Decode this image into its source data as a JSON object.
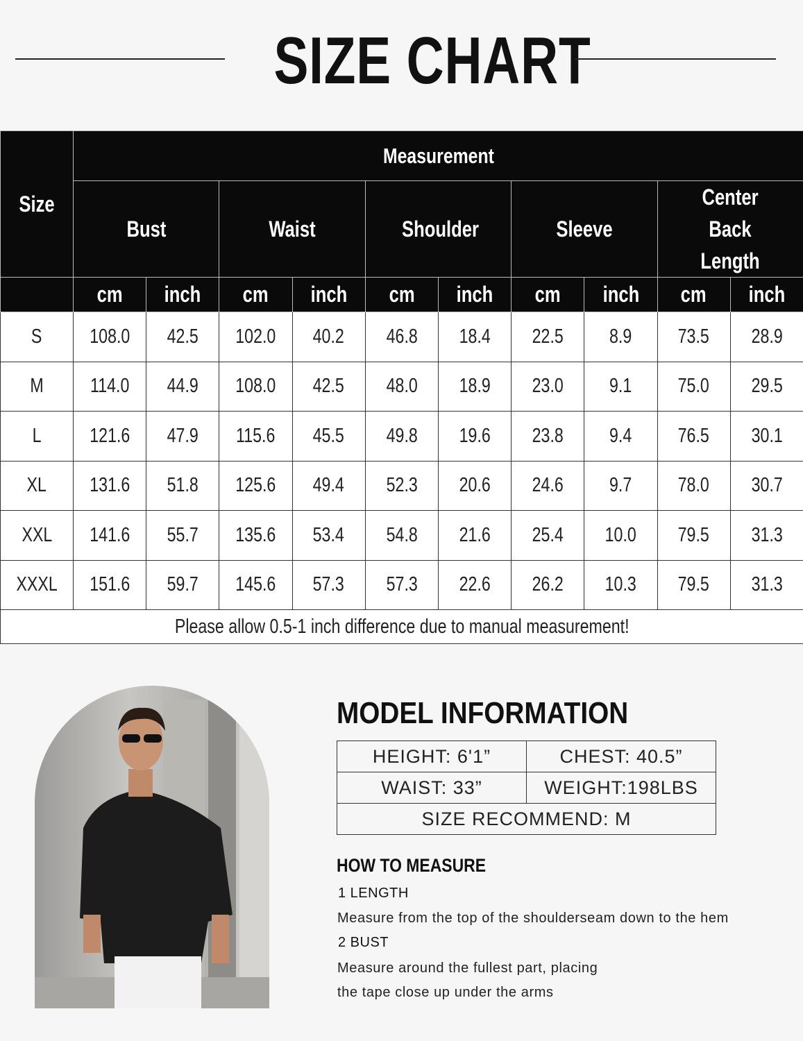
{
  "title": "SIZE CHART",
  "size_table": {
    "size_label": "Size",
    "measurement_label": "Measurement",
    "groups": [
      "Bust",
      "Waist",
      "Shoulder",
      "Sleeve",
      "Center Back Length"
    ],
    "units": [
      "cm",
      "inch"
    ],
    "rows": [
      [
        "S",
        "108.0",
        "42.5",
        "102.0",
        "40.2",
        "46.8",
        "18.4",
        "22.5",
        "8.9",
        "73.5",
        "28.9"
      ],
      [
        "M",
        "114.0",
        "44.9",
        "108.0",
        "42.5",
        "48.0",
        "18.9",
        "23.0",
        "9.1",
        "75.0",
        "29.5"
      ],
      [
        "L",
        "121.6",
        "47.9",
        "115.6",
        "45.5",
        "49.8",
        "19.6",
        "23.8",
        "9.4",
        "76.5",
        "30.1"
      ],
      [
        "XL",
        "131.6",
        "51.8",
        "125.6",
        "49.4",
        "52.3",
        "20.6",
        "24.6",
        "9.7",
        "78.0",
        "30.7"
      ],
      [
        "XXL",
        "141.6",
        "55.7",
        "135.6",
        "53.4",
        "54.8",
        "21.6",
        "25.4",
        "10.0",
        "79.5",
        "31.3"
      ],
      [
        "XXXL",
        "151.6",
        "59.7",
        "145.6",
        "57.3",
        "57.3",
        "22.6",
        "26.2",
        "10.3",
        "79.5",
        "31.3"
      ]
    ],
    "note": "Please allow 0.5-1 inch difference due to manual measurement!"
  },
  "model": {
    "title": "MODEL INFORMATION",
    "height": "HEIGHT:  6'1”",
    "chest": "CHEST:  40.5”",
    "waist": "WAIST:  33”",
    "weight": "WEIGHT:198LBS",
    "size": "SIZE RECOMMEND:  M"
  },
  "how_to": {
    "title": "HOW TO MEASURE",
    "items": [
      {
        "heading": "1 LENGTH",
        "lines": [
          "Measure from the top of the shoulderseam down to the hem"
        ]
      },
      {
        "heading": "2 BUST",
        "lines": [
          "Measure around the fullest part, placing",
          "the tape close up under the arms"
        ]
      }
    ]
  }
}
